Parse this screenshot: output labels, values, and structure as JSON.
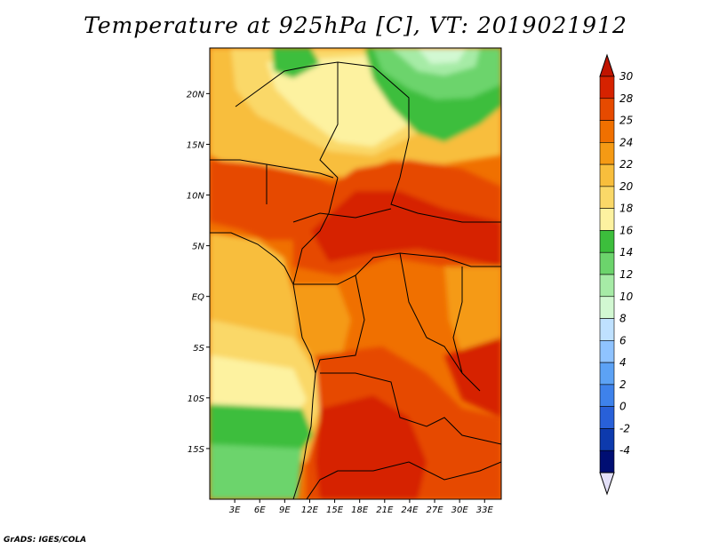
{
  "title": "Temperature at 925hPa [C], VT: 2019021912",
  "footer": "GrADS: IGES/COLA",
  "map": {
    "lon_range": [
      0,
      35
    ],
    "lat_range": [
      -20,
      24.5
    ],
    "lat_ticks": [
      {
        "value": 20,
        "label": "20N"
      },
      {
        "value": 15,
        "label": "15N"
      },
      {
        "value": 10,
        "label": "10N"
      },
      {
        "value": 5,
        "label": "5N"
      },
      {
        "value": 0,
        "label": "EQ"
      },
      {
        "value": -5,
        "label": "5S"
      },
      {
        "value": -10,
        "label": "10S"
      },
      {
        "value": -15,
        "label": "15S"
      }
    ],
    "lon_ticks": [
      {
        "value": 3,
        "label": "3E"
      },
      {
        "value": 6,
        "label": "6E"
      },
      {
        "value": 9,
        "label": "9E"
      },
      {
        "value": 12,
        "label": "12E"
      },
      {
        "value": 15,
        "label": "15E"
      },
      {
        "value": 18,
        "label": "18E"
      },
      {
        "value": 21,
        "label": "21E"
      },
      {
        "value": 24,
        "label": "24E"
      },
      {
        "value": 27,
        "label": "27E"
      },
      {
        "value": 30,
        "label": "30E"
      },
      {
        "value": 33,
        "label": "33E"
      }
    ]
  },
  "colorbar": {
    "labels": [
      "30",
      "28",
      "25",
      "24",
      "22",
      "20",
      "18",
      "16",
      "14",
      "12",
      "10",
      "8",
      "6",
      "4",
      "2",
      "0",
      "-2",
      "-4"
    ],
    "colors": [
      "#d62200",
      "#e64a00",
      "#f07000",
      "#f59a14",
      "#f8be3c",
      "#fad868",
      "#fdf2a0",
      "#3cbe3c",
      "#6cd46c",
      "#a6eba6",
      "#d2f8d2",
      "#bfe1ff",
      "#8fc3ff",
      "#5ca2f5",
      "#3e82eb",
      "#2860d8",
      "#0d3aad",
      "#000e73"
    ],
    "top_color": "#c01400",
    "bottom_color": "#e3e0f8"
  },
  "field_colors": {
    "t30": "#d62200",
    "t28": "#e64a00",
    "t25": "#f07000",
    "t24": "#f59a14",
    "t22": "#f8be3c",
    "t20": "#fad868",
    "t18": "#fdf2a0",
    "t16": "#3cbe3c",
    "t14": "#6cd46c",
    "t12": "#a6eba6",
    "t10": "#d2f8d2"
  }
}
